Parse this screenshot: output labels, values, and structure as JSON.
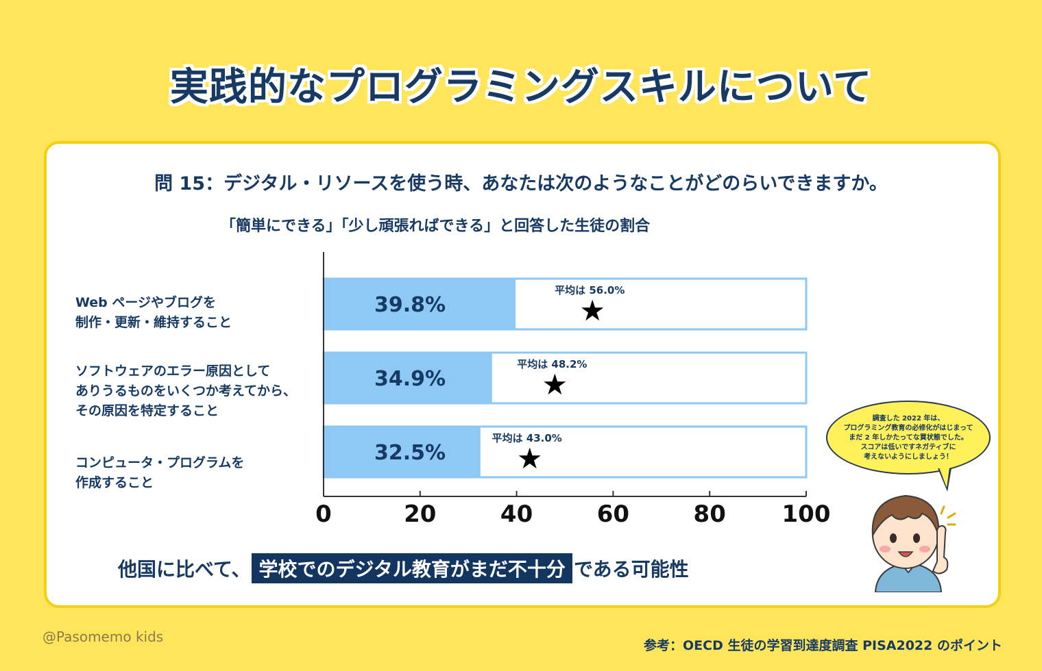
{
  "title": "実践的なプログラミングスキルについて",
  "question": "問 15：デジタル・リソースを使う時、あなたは次のようなことがどのらいできますか。",
  "subtitle": "「簡単にできる」「少し頑張ればできる」と回答した生徒の割合",
  "chart_data": {
    "type": "bar",
    "orientation": "horizontal",
    "categories": [
      [
        "Web ページやブログを",
        "制作・更新・維持すること"
      ],
      [
        "ソフトウェアのエラー原因として",
        "ありうるものをいくつか考えてから、",
        "その原因を特定すること"
      ],
      [
        "コンピュータ・プログラムを",
        "作成すること"
      ]
    ],
    "values": [
      39.8,
      34.9,
      32.5
    ],
    "value_labels": [
      "39.8%",
      "34.9%",
      "32.5%"
    ],
    "averages": [
      56.0,
      48.2,
      43.0
    ],
    "average_labels": [
      "平均は 56.0%",
      "平均は 48.2%",
      "平均は 43.0%"
    ],
    "xlim": [
      0,
      100
    ],
    "xticks": [
      "0",
      "20",
      "40",
      "60",
      "80",
      "100"
    ],
    "grid": false,
    "colors": {
      "bar": "#8ec9f5",
      "frame": "#8ec9f5",
      "text": "#163a63"
    }
  },
  "conclusion": {
    "before": "他国に比べて、",
    "highlight": "学校でのデジタル教育がまだ不十分",
    "after": "である可能性"
  },
  "bubble_lines": [
    "調査した 2022 年は、",
    "プログラミング教育の必修化がはじまって",
    "まだ 2 年しかたってな買状態でした。",
    "スコアは低いですネガティブに",
    "考えないようにしましょう！"
  ],
  "handle": "@Pasomemo kids",
  "source": "参考：OECD 生徒の学習到達度調査 PISA2022 のポイント"
}
